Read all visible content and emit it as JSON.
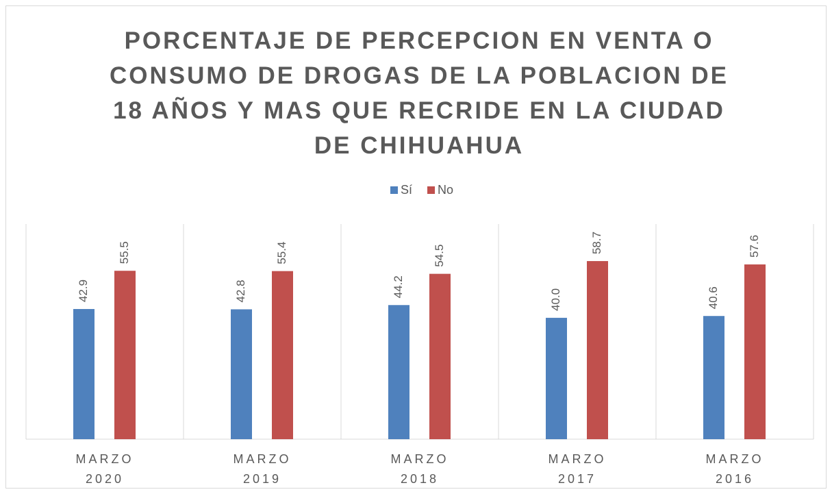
{
  "chart_data": {
    "type": "bar",
    "title": "PORCENTAJE DE PERCEPCION EN VENTA O CONSUMO DE DROGAS DE LA POBLACION DE 18 AÑOS Y MAS QUE RECRIDE EN LA CIUDAD DE CHIHUAHUA",
    "categories": [
      "MARZO 2020",
      "MARZO 2019",
      "MARZO 2018",
      "MARZO 2017",
      "MARZO 2016"
    ],
    "series": [
      {
        "name": "Sí",
        "color": "#4f81bd",
        "values": [
          42.9,
          42.8,
          44.2,
          40.0,
          40.6
        ],
        "value_labels": [
          "42.9",
          "42.8",
          "44.2",
          "40.0",
          "40.6"
        ]
      },
      {
        "name": "No",
        "color": "#c0504d",
        "values": [
          55.5,
          55.4,
          54.5,
          58.7,
          57.6
        ],
        "value_labels": [
          "55.5",
          "55.4",
          "54.5",
          "58.7",
          "57.6"
        ]
      }
    ],
    "ylim": [
      0,
      70
    ]
  }
}
